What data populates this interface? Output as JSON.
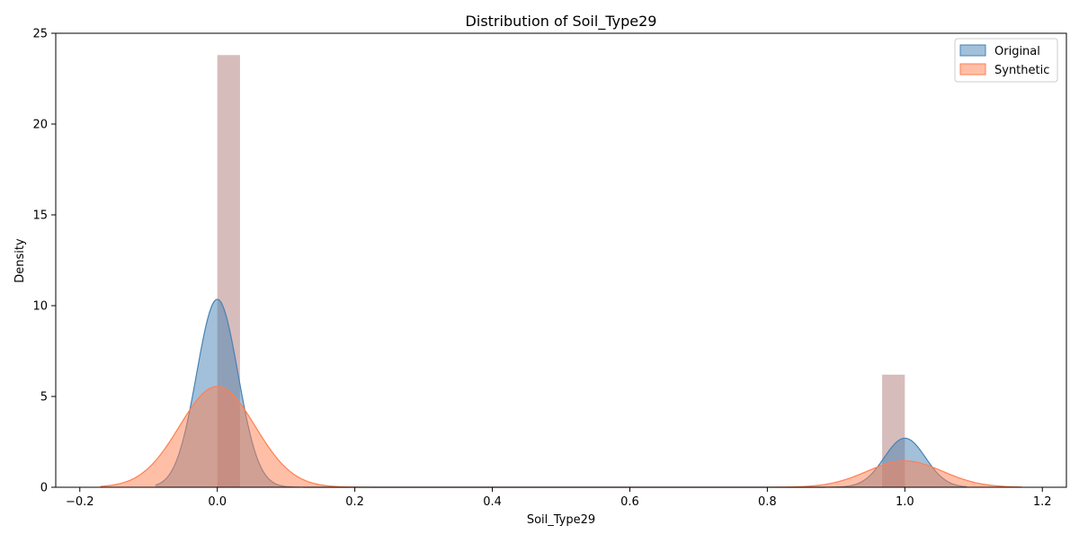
{
  "chart_data": {
    "type": "area",
    "title": "Distribution of Soil_Type29",
    "xlabel": "Soil_Type29",
    "ylabel": "Density",
    "xlim": [
      -0.235,
      1.235
    ],
    "ylim": [
      0,
      25
    ],
    "xticks": [
      -0.2,
      0.0,
      0.2,
      0.4,
      0.6,
      0.8,
      1.0,
      1.2
    ],
    "xtick_labels": [
      "−0.2",
      "0.0",
      "0.2",
      "0.4",
      "0.6",
      "0.8",
      "1.0",
      "1.2"
    ],
    "yticks": [
      0,
      5,
      10,
      15,
      20,
      25
    ],
    "ytick_labels": [
      "0",
      "5",
      "10",
      "15",
      "20",
      "25"
    ],
    "legend_position": "top-right",
    "grid": false,
    "histogram": {
      "color": "#bc8f8f",
      "bars": [
        {
          "x0": 0.0,
          "x1": 0.033,
          "height": 23.8
        },
        {
          "x0": 0.967,
          "x1": 1.0,
          "height": 6.2
        }
      ]
    },
    "series": [
      {
        "name": "Original",
        "fill": "#4682b4",
        "stroke": "#4682b4",
        "x_range": [
          -0.09,
          1.09
        ],
        "peaks": [
          {
            "mu": 0.0,
            "sigma": 0.03,
            "height": 10.35
          },
          {
            "mu": 1.0,
            "sigma": 0.03,
            "height": 2.7
          }
        ]
      },
      {
        "name": "Synthetic",
        "fill": "#ff7f50",
        "stroke": "#ff7f50",
        "x_range": [
          -0.17,
          1.17
        ],
        "peaks": [
          {
            "mu": 0.0,
            "sigma": 0.055,
            "height": 5.55
          },
          {
            "mu": 1.0,
            "sigma": 0.055,
            "height": 1.45
          }
        ]
      }
    ]
  }
}
